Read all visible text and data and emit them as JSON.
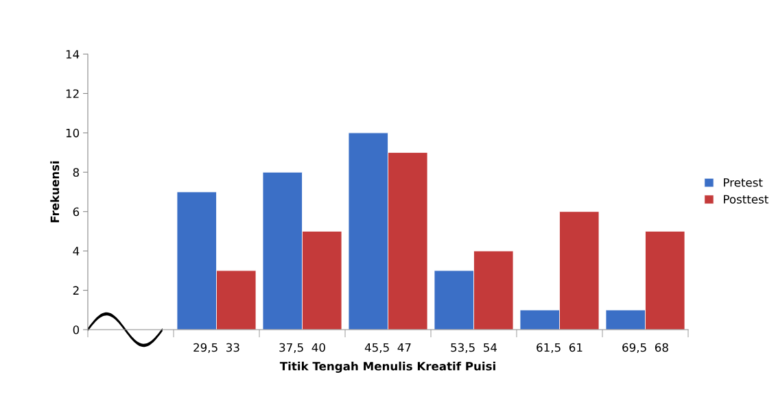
{
  "chart_data": {
    "type": "bar",
    "xlabel": "Titik Tengah Menulis Kreatif Puisi",
    "ylabel": "Frekuensi",
    "categories": [
      null,
      "29,5  33",
      "37,5  40",
      "45,5  47",
      "53,5  54",
      "61,5  61",
      "69,5  68"
    ],
    "series": [
      {
        "name": "Pretest",
        "color": "#3b6fc6",
        "values": [
          null,
          7,
          8,
          10,
          3,
          1,
          1
        ]
      },
      {
        "name": "Posttest",
        "color": "#c43a3a",
        "values": [
          null,
          3,
          5,
          9,
          4,
          6,
          5
        ]
      }
    ],
    "ylim": [
      0,
      14
    ],
    "yticks": [
      0,
      2,
      4,
      6,
      8,
      10,
      12,
      14
    ],
    "grid": false,
    "legend": "right"
  }
}
